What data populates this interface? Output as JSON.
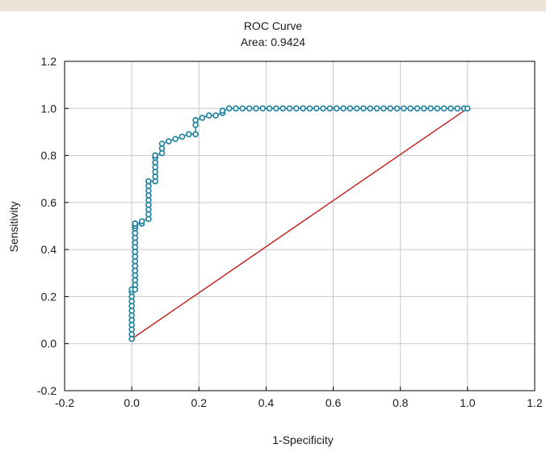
{
  "chart_data": {
    "type": "line",
    "title": "ROC Curve",
    "subtitle": "Area: 0.9424",
    "xlabel": "1-Specificity",
    "ylabel": "Sensitivity",
    "xlim": [
      -0.2,
      1.2
    ],
    "ylim": [
      -0.2,
      1.2
    ],
    "xticks": [
      "-0.2",
      "0.0",
      "0.2",
      "0.4",
      "0.6",
      "0.8",
      "1.0",
      "1.2"
    ],
    "yticks": [
      "-0.2",
      "0.0",
      "0.2",
      "0.4",
      "0.6",
      "0.8",
      "1.0",
      "1.2"
    ],
    "grid": true,
    "legend": "none",
    "colors": {
      "roc": "#1a7f9c",
      "reference": "#c0201e",
      "grid": "#c8c8c8",
      "band": "#ece3d6"
    },
    "series": [
      {
        "x": [
          0.0,
          0.0,
          0.0,
          0.0,
          0.0,
          0.0,
          0.0,
          0.0,
          0.0,
          0.0,
          0.0,
          0.0,
          0.01,
          0.01,
          0.01,
          0.01,
          0.01,
          0.01,
          0.01,
          0.01,
          0.01,
          0.01,
          0.01,
          0.01,
          0.01,
          0.01,
          0.01,
          0.01,
          0.01,
          0.01,
          0.01,
          0.03,
          0.03,
          0.05,
          0.05,
          0.05,
          0.05,
          0.05,
          0.05,
          0.05,
          0.05,
          0.05,
          0.05,
          0.07,
          0.07,
          0.07,
          0.07,
          0.07,
          0.07,
          0.07,
          0.07,
          0.09,
          0.09,
          0.09,
          0.11,
          0.13,
          0.15,
          0.17,
          0.19,
          0.19,
          0.19,
          0.21,
          0.23,
          0.25,
          0.27,
          0.27,
          0.29,
          0.31,
          0.33,
          0.35,
          0.37,
          0.39,
          0.41,
          0.43,
          0.45,
          0.47,
          0.49,
          0.51,
          0.53,
          0.55,
          0.57,
          0.59,
          0.61,
          0.63,
          0.65,
          0.67,
          0.69,
          0.71,
          0.73,
          0.75,
          0.77,
          0.79,
          0.81,
          0.83,
          0.85,
          0.87,
          0.89,
          0.91,
          0.93,
          0.95,
          0.97,
          0.99,
          1.0
        ],
        "y": [
          0.02,
          0.04,
          0.06,
          0.08,
          0.1,
          0.12,
          0.14,
          0.16,
          0.18,
          0.2,
          0.22,
          0.23,
          0.23,
          0.25,
          0.27,
          0.29,
          0.31,
          0.33,
          0.35,
          0.37,
          0.39,
          0.41,
          0.43,
          0.45,
          0.47,
          0.49,
          0.5,
          0.51,
          0.51,
          0.51,
          0.51,
          0.51,
          0.52,
          0.53,
          0.55,
          0.57,
          0.59,
          0.61,
          0.63,
          0.65,
          0.67,
          0.69,
          0.69,
          0.69,
          0.71,
          0.73,
          0.75,
          0.77,
          0.79,
          0.8,
          0.8,
          0.81,
          0.83,
          0.85,
          0.86,
          0.87,
          0.88,
          0.89,
          0.89,
          0.93,
          0.95,
          0.96,
          0.97,
          0.97,
          0.98,
          0.99,
          1.0,
          1.0,
          1.0,
          1.0,
          1.0,
          1.0,
          1.0,
          1.0,
          1.0,
          1.0,
          1.0,
          1.0,
          1.0,
          1.0,
          1.0,
          1.0,
          1.0,
          1.0,
          1.0,
          1.0,
          1.0,
          1.0,
          1.0,
          1.0,
          1.0,
          1.0,
          1.0,
          1.0,
          1.0,
          1.0,
          1.0,
          1.0,
          1.0,
          1.0,
          1.0,
          1.0,
          1.0
        ]
      },
      {
        "x": [
          0.0,
          1.0
        ],
        "y": [
          0.02,
          1.0
        ]
      }
    ]
  }
}
